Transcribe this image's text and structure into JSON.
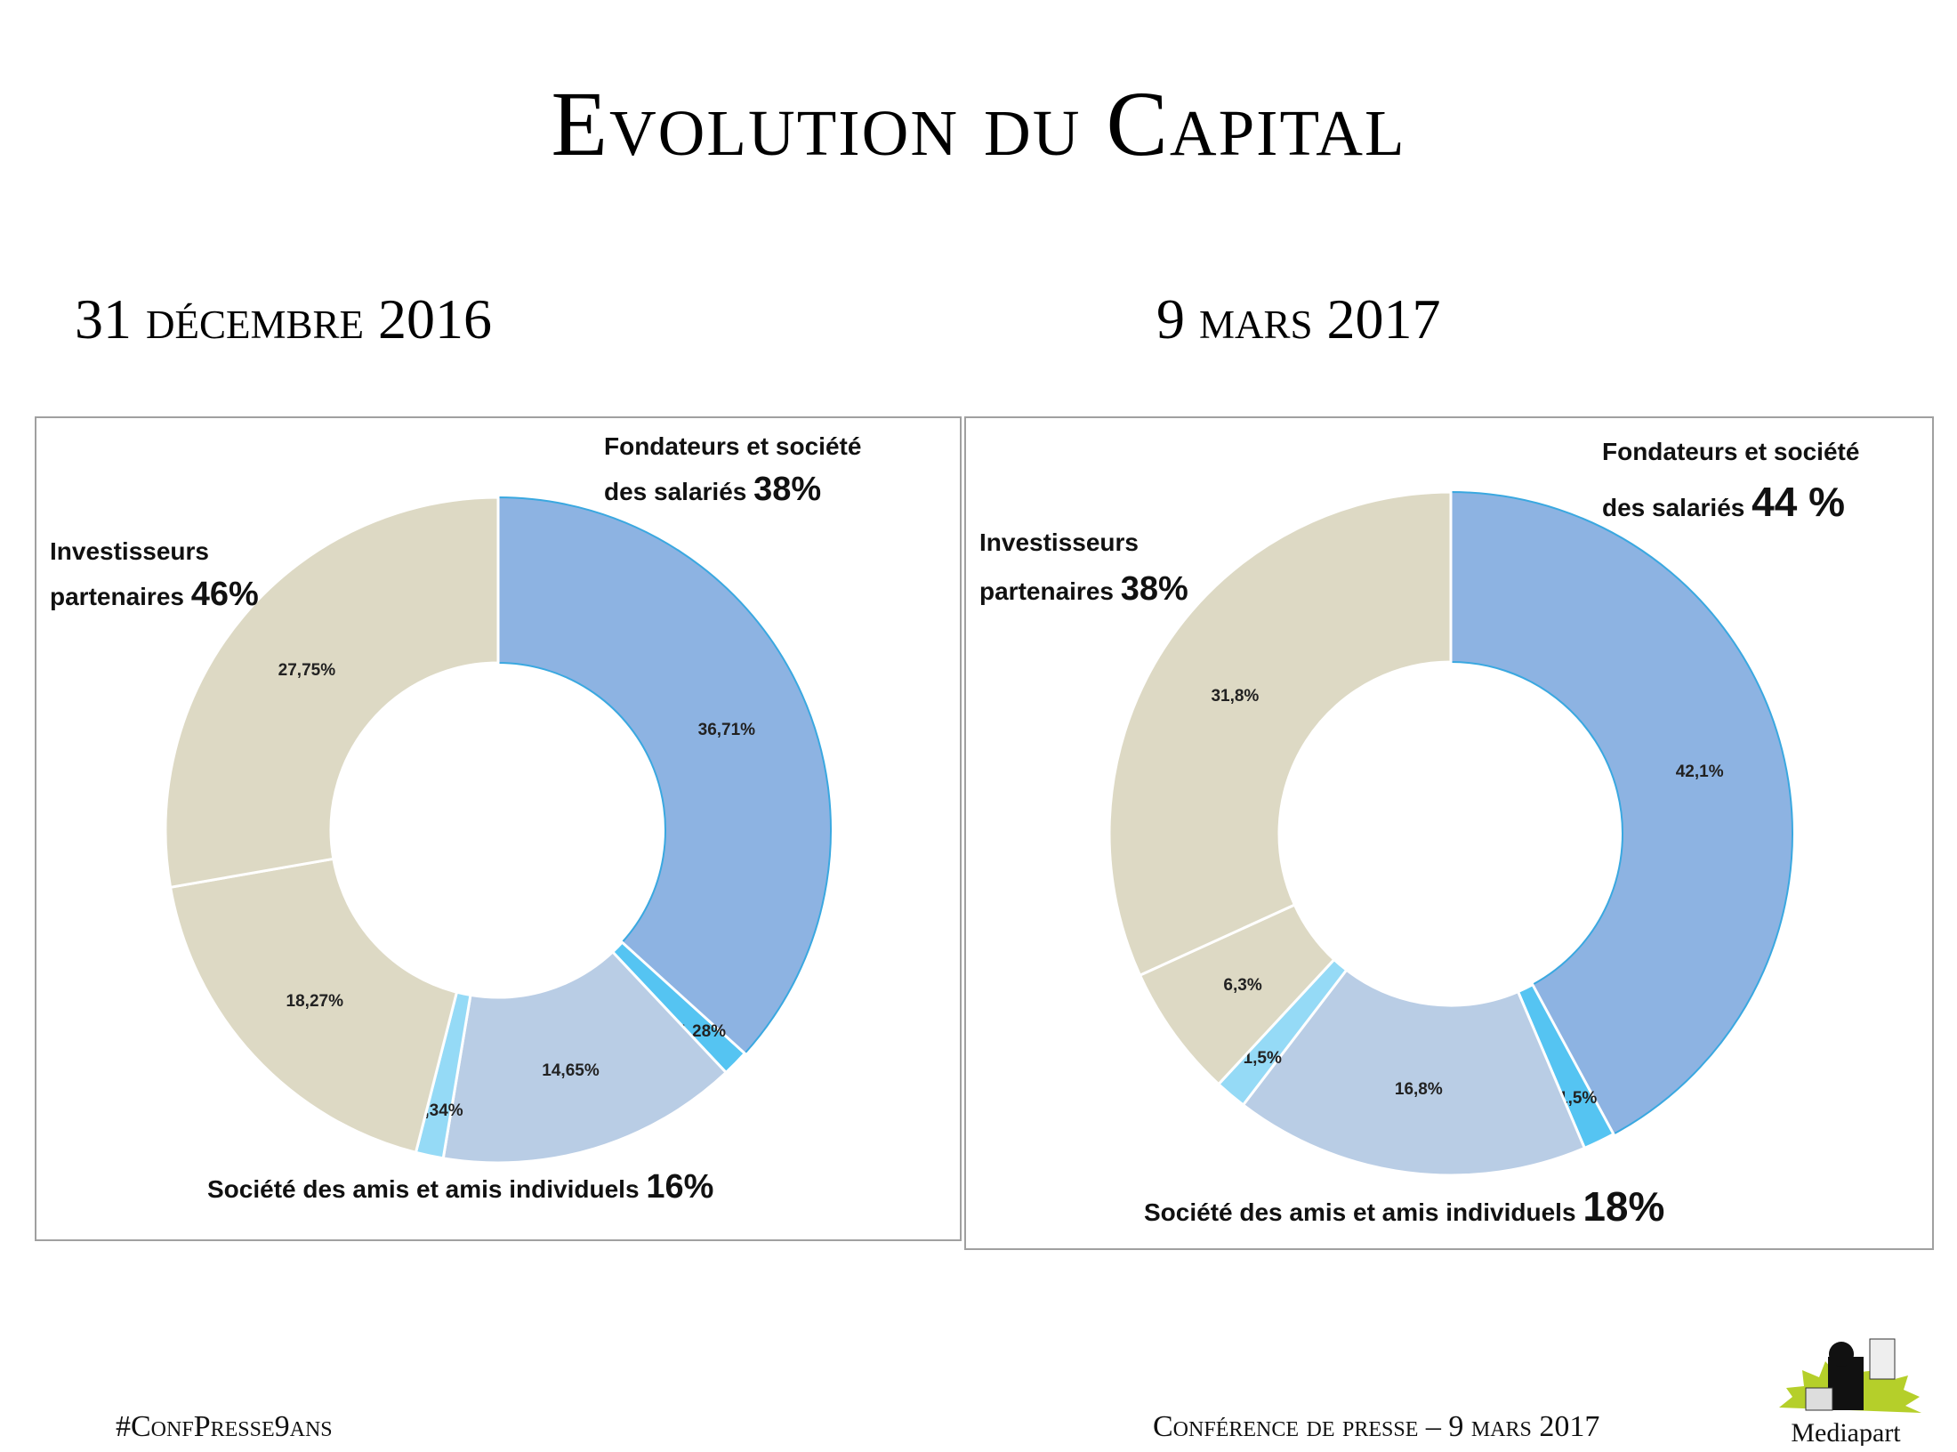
{
  "title": "Evolution du Capital",
  "chart_data": [
    {
      "type": "pie",
      "variant": "donut",
      "title": "31 décembre 2016",
      "slices": [
        {
          "label": "36,71%",
          "value": 36.71,
          "group": "Fondateurs et société des salariés",
          "color": "#8DB3E2"
        },
        {
          "label": "1,28%",
          "value": 1.28,
          "group": "Fondateurs et société des salariés",
          "color": "#55C4F2"
        },
        {
          "label": "14,65%",
          "value": 14.65,
          "group": "Société des amis et amis individuels",
          "color": "#B9CDE5"
        },
        {
          "label": "1,34%",
          "value": 1.34,
          "group": "Société des amis et amis individuels",
          "color": "#95DAF6"
        },
        {
          "label": "18,27%",
          "value": 18.27,
          "group": "Investisseurs partenaires",
          "color": "#DDD9C4"
        },
        {
          "label": "27,75%",
          "value": 27.75,
          "group": "Investisseurs partenaires",
          "color": "#DDD9C4"
        }
      ],
      "groups": [
        {
          "line1": "Fondateurs et société",
          "line2": "des salariés",
          "pct": "38%"
        },
        {
          "line1": "Investisseurs",
          "line2": "partenaires",
          "pct": "46%"
        },
        {
          "line1": "",
          "line2": "Société des amis et amis individuels",
          "pct": "16%"
        }
      ]
    },
    {
      "type": "pie",
      "variant": "donut",
      "title": "9 mars 2017",
      "slices": [
        {
          "label": "42,1%",
          "value": 42.1,
          "group": "Fondateurs et société des salariés",
          "color": "#8DB3E2"
        },
        {
          "label": "1,5%",
          "value": 1.5,
          "group": "Fondateurs et société des salariés",
          "color": "#55C4F2"
        },
        {
          "label": "16,8%",
          "value": 16.8,
          "group": "Société des amis et amis individuels",
          "color": "#B9CDE5"
        },
        {
          "label": "1,5%",
          "value": 1.5,
          "group": "Société des amis et amis individuels",
          "color": "#95DAF6"
        },
        {
          "label": "6,3%",
          "value": 6.3,
          "group": "Investisseurs partenaires",
          "color": "#DDD9C4"
        },
        {
          "label": "31,8%",
          "value": 31.8,
          "group": "Investisseurs partenaires",
          "color": "#DDD9C4"
        }
      ],
      "groups": [
        {
          "line1": "Fondateurs et société",
          "line2": "des salariés",
          "pct": "44 %"
        },
        {
          "line1": "Investisseurs",
          "line2": "partenaires",
          "pct": "38%"
        },
        {
          "line1": "",
          "line2": "Société des amis et amis individuels",
          "pct": "18%"
        }
      ]
    }
  ],
  "footer": {
    "hashtag": "#ConfPresse9ans",
    "event": "Conférence de presse – 9 mars 2017",
    "logo_text": "Mediapart"
  }
}
